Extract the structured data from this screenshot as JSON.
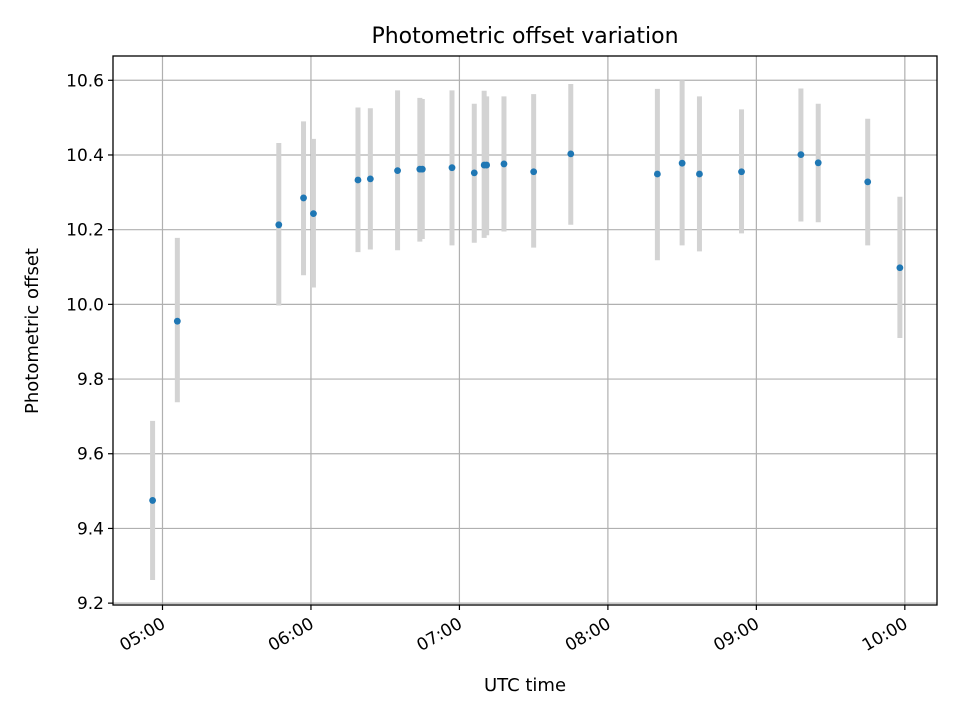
{
  "chart_data": {
    "type": "scatter",
    "title": "Photometric offset variation",
    "xlabel": "UTC time",
    "ylabel": "Photometric offset",
    "xlim": [
      "04:40",
      "10:13"
    ],
    "ylim": [
      9.195,
      10.665
    ],
    "grid": true,
    "x_ticks": [
      "05:00",
      "06:00",
      "07:00",
      "08:00",
      "09:00",
      "10:00"
    ],
    "y_ticks": [
      "9.2",
      "9.4",
      "9.6",
      "9.8",
      "10.0",
      "10.2",
      "10.4",
      "10.6"
    ],
    "colors": {
      "point": "#1f77b4",
      "errorbar": "#d3d3d3",
      "grid": "#b0b0b0"
    },
    "series": [
      {
        "x": [
          "04:56",
          "05:06",
          "05:47",
          "05:57",
          "06:01",
          "06:19",
          "06:24",
          "06:35",
          "06:44",
          "06:45",
          "06:57",
          "07:06",
          "07:10",
          "07:11",
          "07:18",
          "07:30",
          "07:45",
          "08:20",
          "08:30",
          "08:37",
          "08:54",
          "09:18",
          "09:25",
          "09:45",
          "09:58"
        ],
        "y": [
          9.475,
          9.955,
          10.213,
          10.285,
          10.243,
          10.333,
          10.336,
          10.358,
          10.362,
          10.362,
          10.366,
          10.352,
          10.373,
          10.373,
          10.376,
          10.355,
          10.403,
          10.349,
          10.378,
          10.349,
          10.355,
          10.401,
          10.379,
          10.328,
          10.098
        ],
        "err_low": [
          9.262,
          9.738,
          9.997,
          10.078,
          10.045,
          10.14,
          10.147,
          10.145,
          10.168,
          10.175,
          10.158,
          10.165,
          10.178,
          10.185,
          10.195,
          10.152,
          10.213,
          10.118,
          10.158,
          10.142,
          10.19,
          10.222,
          10.22,
          10.158,
          9.91
        ],
        "err_high": [
          9.688,
          10.178,
          10.432,
          10.49,
          10.443,
          10.527,
          10.525,
          10.573,
          10.553,
          10.55,
          10.573,
          10.537,
          10.572,
          10.557,
          10.557,
          10.563,
          10.59,
          10.577,
          10.6,
          10.557,
          10.522,
          10.578,
          10.537,
          10.497,
          10.288
        ]
      }
    ]
  }
}
